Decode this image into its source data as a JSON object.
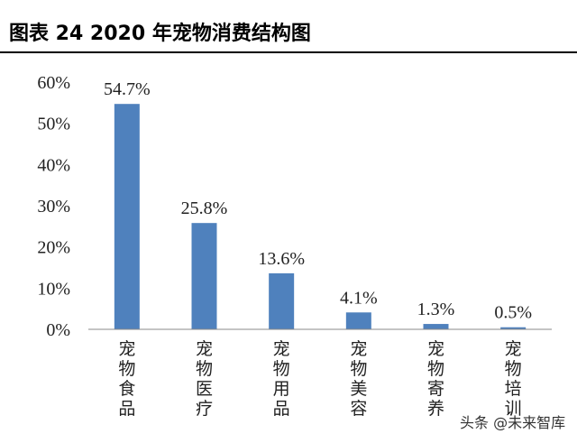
{
  "title": "图表 24 2020 年宠物消费结构图",
  "watermark": "头条 @未来智库",
  "colors": {
    "bar": "#4f81bd",
    "title_rule": "#000000",
    "axis": "#888888"
  },
  "chart_data": {
    "type": "bar",
    "categories": [
      "宠物食品",
      "宠物医疗",
      "宠物用品",
      "宠物美容",
      "宠物寄养",
      "宠物培训"
    ],
    "values": [
      54.7,
      25.8,
      13.6,
      4.1,
      1.3,
      0.5
    ],
    "data_labels": [
      "54.7%",
      "25.8%",
      "13.6%",
      "4.1%",
      "1.3%",
      "0.5%"
    ],
    "ylim": [
      0,
      60
    ],
    "y_ticks": [
      0,
      10,
      20,
      30,
      40,
      50,
      60
    ],
    "y_tick_labels": [
      "0%",
      "10%",
      "20%",
      "30%",
      "40%",
      "50%",
      "60%"
    ],
    "grid": false,
    "legend": "none"
  }
}
